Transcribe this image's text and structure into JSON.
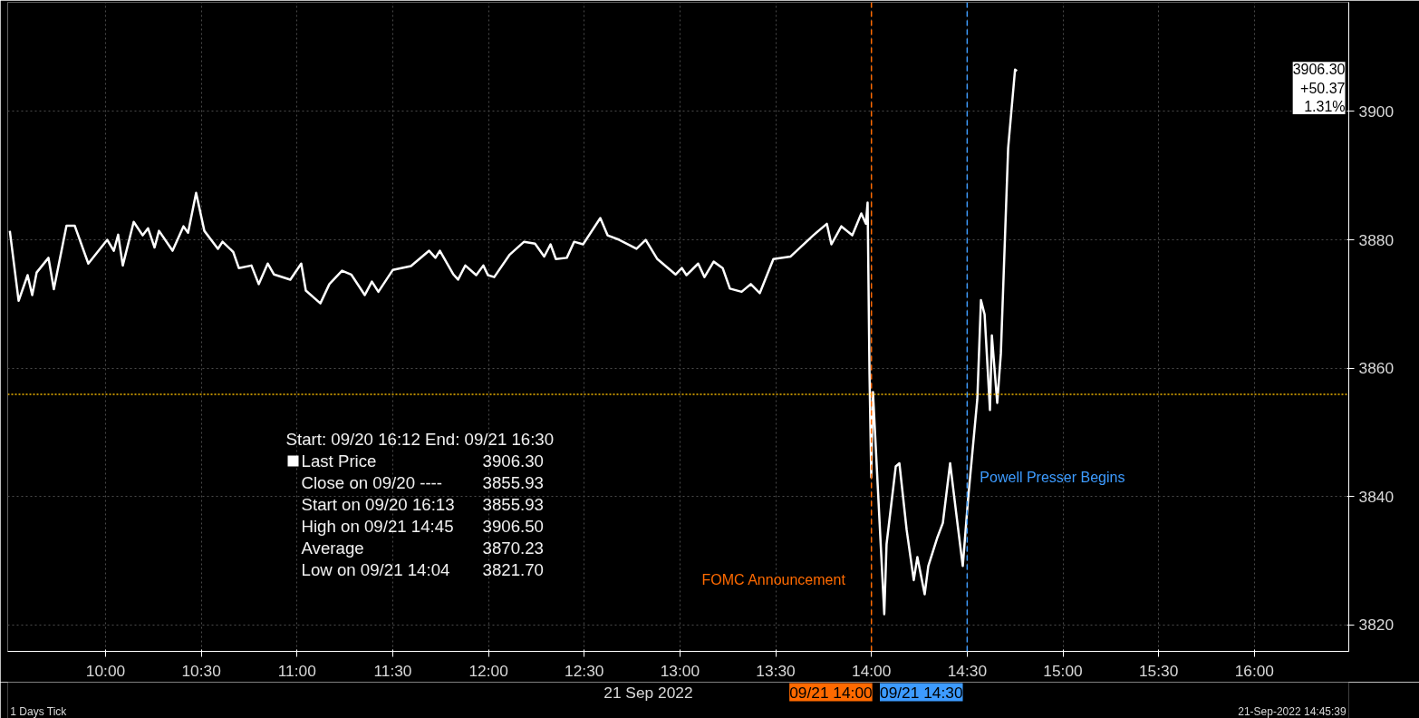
{
  "chart_data": {
    "type": "line",
    "xlabel": "21 Sep 2022",
    "x": [
      9.5,
      9.546,
      9.593,
      9.617,
      9.64,
      9.702,
      9.73,
      9.796,
      9.839,
      9.91,
      10.009,
      10.043,
      10.066,
      10.09,
      10.147,
      10.194,
      10.222,
      10.256,
      10.279,
      10.35,
      10.407,
      10.431,
      10.473,
      10.516,
      10.587,
      10.611,
      10.667,
      10.696,
      10.762,
      10.8,
      10.847,
      10.88,
      10.965,
      11.022,
      11.046,
      11.122,
      11.169,
      11.235,
      11.283,
      11.354,
      11.391,
      11.425,
      11.5,
      11.595,
      11.69,
      11.723,
      11.746,
      11.817,
      11.841,
      11.879,
      11.936,
      11.973,
      11.997,
      12.03,
      12.111,
      12.186,
      12.243,
      12.291,
      12.324,
      12.352,
      12.409,
      12.447,
      12.494,
      12.584,
      12.622,
      12.683,
      12.773,
      12.821,
      12.882,
      12.977,
      13.01,
      13.034,
      13.095,
      13.128,
      13.176,
      13.223,
      13.261,
      13.322,
      13.37,
      13.417,
      13.488,
      13.578,
      13.696,
      13.767,
      13.791,
      13.843,
      13.9,
      13.947,
      13.971,
      13.98,
      13.99,
      13.999,
      14.008,
      14.067,
      14.079,
      14.127,
      14.146,
      14.184,
      14.221,
      14.24,
      14.278,
      14.297,
      14.345,
      14.373,
      14.411,
      14.449,
      14.477,
      14.505,
      14.553,
      14.572,
      14.591,
      14.619,
      14.629,
      14.657,
      14.676,
      14.714,
      14.75,
      14.76
    ],
    "series": [
      {
        "name": "Last Price",
        "color": "#ffffff",
        "values": [
          3881.4,
          3870.5,
          3874.5,
          3871.4,
          3874.9,
          3877.2,
          3872.3,
          3882.2,
          3882.2,
          3876.3,
          3880.0,
          3878.3,
          3880.8,
          3876.0,
          3882.8,
          3880.7,
          3881.8,
          3878.8,
          3881.4,
          3878.3,
          3882.1,
          3881.1,
          3887.3,
          3881.4,
          3878.6,
          3879.7,
          3878.1,
          3875.6,
          3876.0,
          3873.1,
          3876.3,
          3874.6,
          3873.8,
          3876.3,
          3872.1,
          3870.1,
          3873.1,
          3875.2,
          3874.6,
          3871.4,
          3873.5,
          3871.9,
          3875.3,
          3875.9,
          3878.3,
          3877.2,
          3878.3,
          3874.6,
          3873.8,
          3876.0,
          3874.5,
          3876.0,
          3874.5,
          3874.2,
          3877.7,
          3879.7,
          3879.4,
          3877.4,
          3879.3,
          3877.0,
          3877.2,
          3879.7,
          3879.3,
          3883.4,
          3880.7,
          3880.0,
          3878.6,
          3880.0,
          3877.0,
          3874.6,
          3875.6,
          3874.5,
          3876.3,
          3874.2,
          3876.6,
          3875.6,
          3872.4,
          3871.9,
          3873.1,
          3871.7,
          3877.0,
          3877.4,
          3880.7,
          3882.5,
          3879.3,
          3882.1,
          3880.7,
          3884.1,
          3882.5,
          3885.8,
          3859.0,
          3843.0,
          3856.3,
          3821.7,
          3832.6,
          3844.7,
          3845.2,
          3834.8,
          3827.0,
          3830.6,
          3824.8,
          3829.2,
          3833.7,
          3835.9,
          3845.2,
          3835.9,
          3829.2,
          3839.7,
          3855.2,
          3870.6,
          3868.4,
          3853.5,
          3865.1,
          3854.6,
          3862.3,
          3894.3,
          3906.5,
          3906.3
        ]
      }
    ],
    "xlim": [
      9.489,
      16.493
    ],
    "ylim": [
      3815.9,
      3917.0
    ],
    "xticks": [
      {
        "value": 10,
        "label": "10:00"
      },
      {
        "value": 10.5,
        "label": "10:30"
      },
      {
        "value": 11,
        "label": "11:00"
      },
      {
        "value": 11.5,
        "label": "11:30"
      },
      {
        "value": 12,
        "label": "12:00"
      },
      {
        "value": 12.5,
        "label": "12:30"
      },
      {
        "value": 13,
        "label": "13:00"
      },
      {
        "value": 13.5,
        "label": "13:30"
      },
      {
        "value": 14,
        "label": "14:00"
      },
      {
        "value": 14.5,
        "label": "14:30"
      },
      {
        "value": 15,
        "label": "15:00"
      },
      {
        "value": 15.5,
        "label": "15:30"
      },
      {
        "value": 16,
        "label": "16:00"
      }
    ],
    "yticks": [
      3820,
      3840,
      3860,
      3880,
      3900
    ],
    "grid": true,
    "line_style": "solid",
    "marker": "none",
    "ref_lines": [
      {
        "axis": "x",
        "value": 14,
        "label": "09/21 14:00",
        "color": "#ff6a00",
        "line_style": "dashed"
      },
      {
        "axis": "x",
        "value": 14.5,
        "label": "09/21 14:30",
        "color": "#3d9bff",
        "line_style": "dashed"
      },
      {
        "axis": "y",
        "value": 3855.93,
        "color": "#f0b400",
        "line_style": "dotted"
      }
    ],
    "annotations": [
      {
        "text": "FOMC Announcement",
        "x": 14,
        "y": 3827
      },
      {
        "text": "Powell Presser Begins",
        "x": 14.5,
        "y": 3843
      },
      "Start: 09/20 16:12 End: 09/21 16:30",
      "3906.30",
      "Close on 09/20 ---- 3855.93",
      "Start on 09/20 16:13 3855.93",
      "High on 09/21 14:45 3906.50",
      "Average 3870.23",
      "Low on 09/21 14:04 3821.70",
      "3906.30\n+50.37\n1.31%",
      "1 Days  Tick",
      "21-Sep-2022 14:45:39"
    ]
  }
}
